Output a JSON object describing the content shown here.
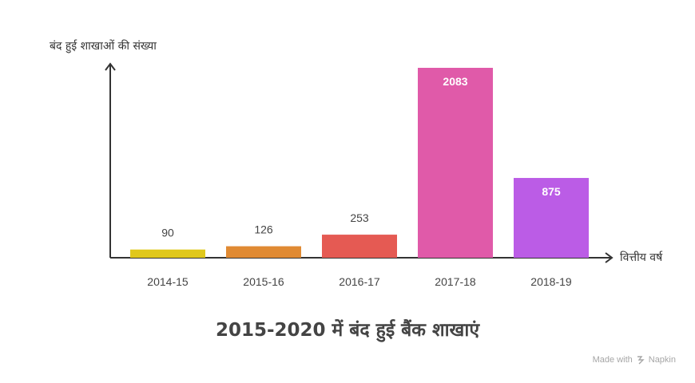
{
  "chart_data": {
    "type": "bar",
    "title": "2015-2020 में बंद हुई बैंक शाखाएं",
    "ylabel": "बंद हुई शाखाओं की संख्या",
    "xlabel": "वित्तीय वर्ष",
    "categories": [
      "2014-15",
      "2015-16",
      "2016-17",
      "2017-18",
      "2018-19"
    ],
    "values": [
      90,
      126,
      253,
      2083,
      875
    ],
    "value_labels": [
      "90",
      "126",
      "253",
      "2083",
      "875"
    ],
    "colors": [
      "#e0c81c",
      "#e08a33",
      "#e55a53",
      "#e05aa9",
      "#bb5ce6"
    ],
    "ylim": [
      0,
      2083
    ],
    "grid": false,
    "legend": "none"
  },
  "footer": {
    "made_with": "Made with",
    "brand": "Napkin"
  }
}
